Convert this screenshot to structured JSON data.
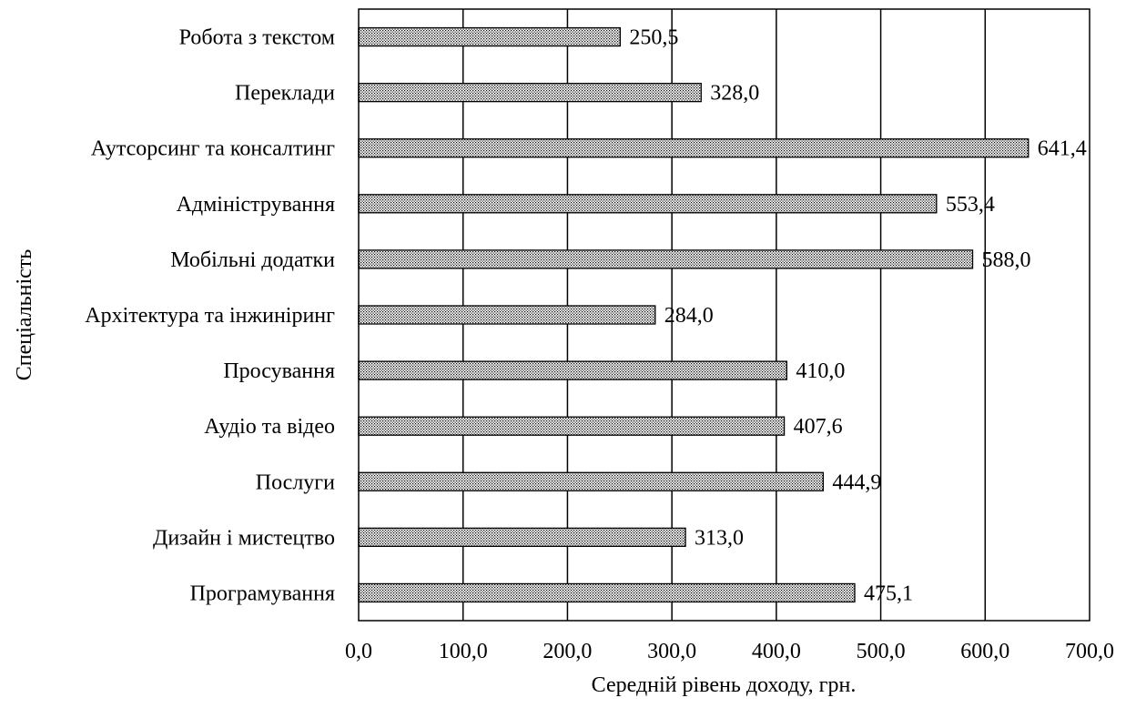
{
  "chart_data": {
    "type": "bar",
    "orientation": "horizontal",
    "categories": [
      "Робота з текстом",
      "Переклади",
      "Аутсорсинг та консалтинг",
      "Адміністрування",
      "Мобільні додатки",
      "Архітектура та інжиніринг",
      "Просування",
      "Аудіо та відео",
      "Послуги",
      "Дизайн і мистецтво",
      "Програмування"
    ],
    "values": [
      250.5,
      328.0,
      641.4,
      553.4,
      588.0,
      284.0,
      410.0,
      407.6,
      444.9,
      313.0,
      475.1
    ],
    "data_labels": [
      "250,5",
      "328,0",
      "641,4",
      "553,4",
      "588,0",
      "284,0",
      "410,0",
      "407,6",
      "444,9",
      "313,0",
      "475,1"
    ],
    "xlabel": "Середній рівень доходу, грн.",
    "ylabel": "Спеціальність",
    "xlim": [
      0,
      700
    ],
    "xticks": [
      0,
      100,
      200,
      300,
      400,
      500,
      600,
      700
    ],
    "xtick_labels": [
      "0,0",
      "100,0",
      "200,0",
      "300,0",
      "400,0",
      "500,0",
      "600,0",
      "700,0"
    ],
    "grid": "vertical",
    "legend": "none",
    "bar_pattern": "dotted",
    "colors": {
      "bar_fill": "#ffffff",
      "bar_dots": "#000000",
      "grid": "#000000",
      "text": "#000000"
    }
  }
}
